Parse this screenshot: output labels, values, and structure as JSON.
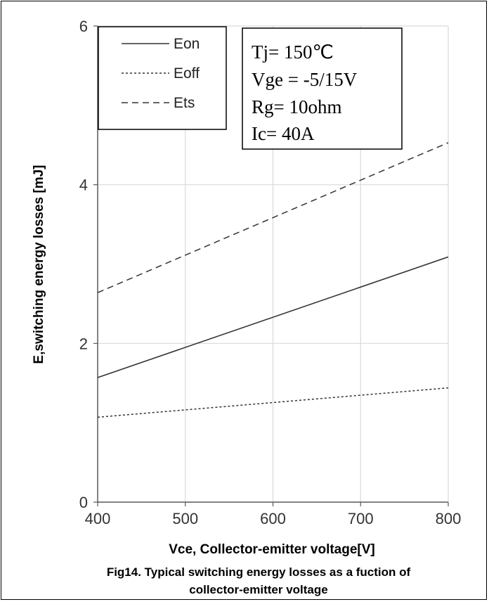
{
  "chart_data": {
    "type": "line",
    "xlabel": "Vce, Collector-emitter voltage[V]",
    "ylabel": "E,switching energy losses [mJ]",
    "caption": [
      "Fig14. Typical switching energy losses as a fuction of",
      "collector-emitter voltage"
    ],
    "xlim": [
      400,
      800
    ],
    "ylim": [
      0,
      6
    ],
    "x_ticks": [
      400,
      500,
      600,
      700,
      800
    ],
    "y_ticks": [
      0,
      2,
      4,
      6
    ],
    "grid": true,
    "legend_position": "top-left",
    "conditions": [
      "Tj= 150℃",
      "Vge = -5/15V",
      "Rg= 10ohm",
      "Ic= 40A"
    ],
    "series": [
      {
        "name": "Eon",
        "style": "solid",
        "color": "#333333",
        "x": [
          400,
          800
        ],
        "y": [
          1.57,
          3.09
        ]
      },
      {
        "name": "Eoff",
        "style": "dotted",
        "color": "#333333",
        "x": [
          400,
          800
        ],
        "y": [
          1.07,
          1.44
        ]
      },
      {
        "name": "Ets",
        "style": "dashed",
        "color": "#333333",
        "x": [
          400,
          800
        ],
        "y": [
          2.64,
          4.53
        ]
      }
    ]
  }
}
